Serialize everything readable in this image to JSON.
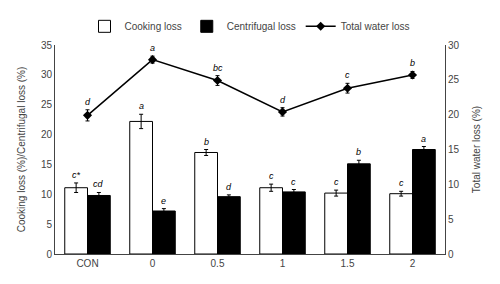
{
  "chart_data": {
    "type": "bar",
    "categories": [
      "CON",
      "0",
      "0.5",
      "1",
      "1.5",
      "2"
    ],
    "series": [
      {
        "name": "Cooking loss",
        "type": "bar",
        "color": "white",
        "values": [
          11.1,
          22.2,
          17.0,
          11.1,
          10.2,
          10.1
        ],
        "errors": [
          0.8,
          1.2,
          0.5,
          0.6,
          0.5,
          0.4
        ],
        "labels": [
          "c*",
          "a",
          "b",
          "c",
          "c",
          "c"
        ]
      },
      {
        "name": "Centrifugal loss",
        "type": "bar",
        "color": "black",
        "values": [
          9.8,
          7.2,
          9.6,
          10.4,
          15.1,
          17.5
        ],
        "errors": [
          0.5,
          0.4,
          0.3,
          0.4,
          0.6,
          0.5
        ],
        "labels": [
          "cd",
          "e",
          "d",
          "c",
          "b",
          "a"
        ]
      },
      {
        "name": "Total water loss",
        "type": "line",
        "color": "black",
        "axis": "y2",
        "marker": "diamond",
        "line_style": "solid",
        "values": [
          19.9,
          27.9,
          24.9,
          20.4,
          23.8,
          25.7
        ],
        "errors": [
          0.8,
          0.5,
          0.7,
          0.6,
          0.7,
          0.5
        ],
        "labels": [
          "d",
          "a",
          "bc",
          "d",
          "c",
          "b"
        ]
      }
    ],
    "ylabel": "Cooking loss (%)/Centrifugal loss (%)",
    "y2label": "Total water loss (%)",
    "ylim": [
      0,
      35
    ],
    "yticks": [
      0,
      5,
      10,
      15,
      20,
      25,
      30,
      35
    ],
    "y2lim": [
      0,
      30
    ],
    "y2ticks": [
      0,
      5,
      10,
      15,
      20,
      25,
      30
    ],
    "grid": false,
    "legend": "top"
  }
}
